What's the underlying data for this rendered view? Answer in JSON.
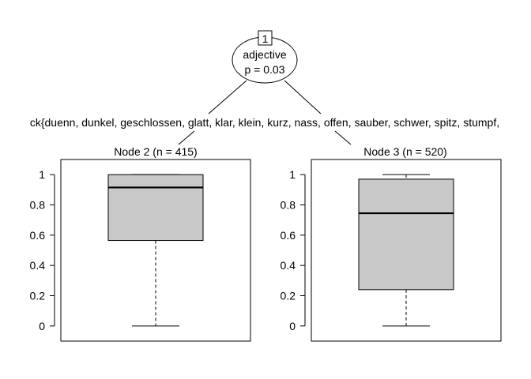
{
  "chart_data": {
    "type": "tree",
    "root": {
      "id": "1",
      "variable": "adjective",
      "p_label": "p = 0.03"
    },
    "split_label": "ck{duenn, dunkel, geschlossen, glatt, klar, klein, kurz, nass, offen, sauber, schwer, spitz, stumpf,",
    "terminal_nodes": [
      {
        "title": "Node 2 (n = 415)",
        "box": {
          "whisker_low": 0,
          "q1": 0.565,
          "median": 0.915,
          "q3": 1.0,
          "whisker_high": 1.0
        }
      },
      {
        "title": "Node 3 (n = 520)",
        "box": {
          "whisker_low": 0,
          "q1": 0.24,
          "median": 0.745,
          "q3": 0.97,
          "whisker_high": 1.0
        }
      }
    ],
    "yticks": [
      "0",
      "0.2",
      "0.4",
      "0.6",
      "0.8",
      "1"
    ],
    "ylim": [
      -0.1,
      1.1
    ]
  }
}
